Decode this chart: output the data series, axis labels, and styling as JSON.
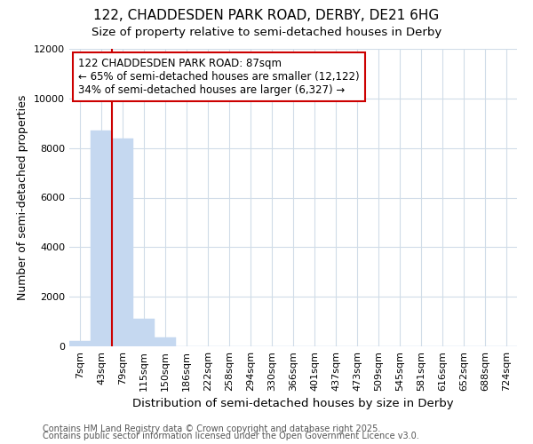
{
  "title1": "122, CHADDESDEN PARK ROAD, DERBY, DE21 6HG",
  "title2": "Size of property relative to semi-detached houses in Derby",
  "xlabel": "Distribution of semi-detached houses by size in Derby",
  "ylabel": "Number of semi-detached properties",
  "categories": [
    "7sqm",
    "43sqm",
    "79sqm",
    "115sqm",
    "150sqm",
    "186sqm",
    "222sqm",
    "258sqm",
    "294sqm",
    "330sqm",
    "366sqm",
    "401sqm",
    "437sqm",
    "473sqm",
    "509sqm",
    "545sqm",
    "581sqm",
    "616sqm",
    "652sqm",
    "688sqm",
    "724sqm"
  ],
  "values": [
    200,
    8700,
    8400,
    1100,
    350,
    0,
    0,
    0,
    0,
    0,
    0,
    0,
    0,
    0,
    0,
    0,
    0,
    0,
    0,
    0,
    0
  ],
  "bar_color": "#c5d8f0",
  "bar_edge_color": "#c5d8f0",
  "property_bin_index": 1.5,
  "vline_color": "#cc0000",
  "annotation_text": "122 CHADDESDEN PARK ROAD: 87sqm\n← 65% of semi-detached houses are smaller (12,122)\n34% of semi-detached houses are larger (6,327) →",
  "annotation_box_color": "#cc0000",
  "ylim": [
    0,
    12000
  ],
  "yticks": [
    0,
    2000,
    4000,
    6000,
    8000,
    10000,
    12000
  ],
  "footer1": "Contains HM Land Registry data © Crown copyright and database right 2025.",
  "footer2": "Contains public sector information licensed under the Open Government Licence v3.0.",
  "bg_color": "#ffffff",
  "grid_color": "#d0dce8",
  "title1_fontsize": 11,
  "title2_fontsize": 9.5,
  "tick_fontsize": 8,
  "ylabel_fontsize": 9,
  "xlabel_fontsize": 9.5,
  "footer_fontsize": 7,
  "ann_fontsize": 8.5
}
